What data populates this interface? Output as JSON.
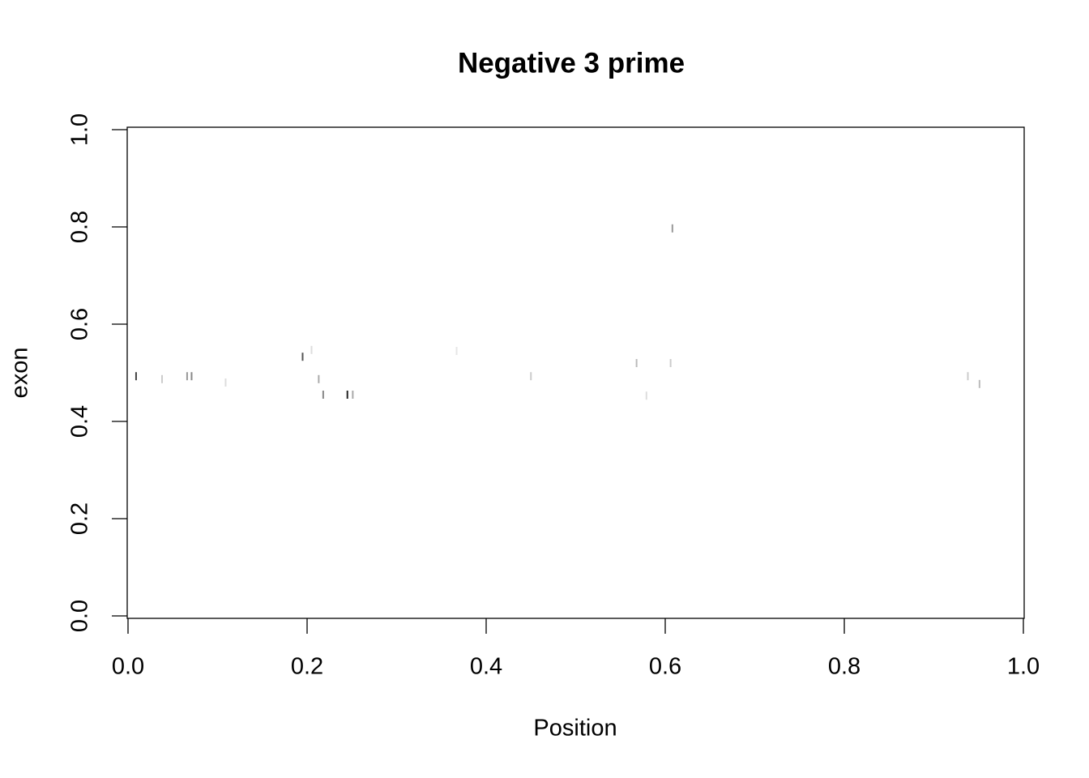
{
  "chart_data": {
    "type": "scatter",
    "title": "Negative 3 prime",
    "x_label": "Position",
    "y_label": "exon",
    "x": [
      0.009,
      0.038,
      0.066,
      0.071,
      0.109,
      0.195,
      0.205,
      0.213,
      0.218,
      0.245,
      0.251,
      0.367,
      0.45,
      0.568,
      0.579,
      0.606,
      0.608,
      0.938,
      0.951
    ],
    "values": [
      0.493,
      0.487,
      0.493,
      0.493,
      0.48,
      0.533,
      0.547,
      0.487,
      0.455,
      0.455,
      0.455,
      0.545,
      0.493,
      0.52,
      0.453,
      0.52,
      0.797,
      0.493,
      0.477
    ],
    "colors": [
      "#444444",
      "#cccccc",
      "#999999",
      "#888888",
      "#dddddd",
      "#555555",
      "#dddddd",
      "#aaaaaa",
      "#888888",
      "#222222",
      "#aaaaaa",
      "#e6e6e6",
      "#cccccc",
      "#bbbbbb",
      "#dddddd",
      "#cccccc",
      "#999999",
      "#cccccc",
      "#bbbbbb"
    ],
    "xlim": [
      0,
      1
    ],
    "ylim": [
      0,
      1
    ],
    "xticks": [
      {
        "value": 0,
        "label": "0.0"
      },
      {
        "value": 0.2,
        "label": "0.2"
      },
      {
        "value": 0.4,
        "label": "0.4"
      },
      {
        "value": 0.6,
        "label": "0.6"
      },
      {
        "value": 0.8,
        "label": "0.8"
      },
      {
        "value": 1,
        "label": "1.0"
      }
    ],
    "yticks": [
      {
        "value": 0,
        "label": "0.0"
      },
      {
        "value": 0.2,
        "label": "0.2"
      },
      {
        "value": 0.4,
        "label": "0.4"
      },
      {
        "value": 0.6,
        "label": "0.6"
      },
      {
        "value": 0.8,
        "label": "0.8"
      },
      {
        "value": 1,
        "label": "1.0"
      }
    ]
  }
}
